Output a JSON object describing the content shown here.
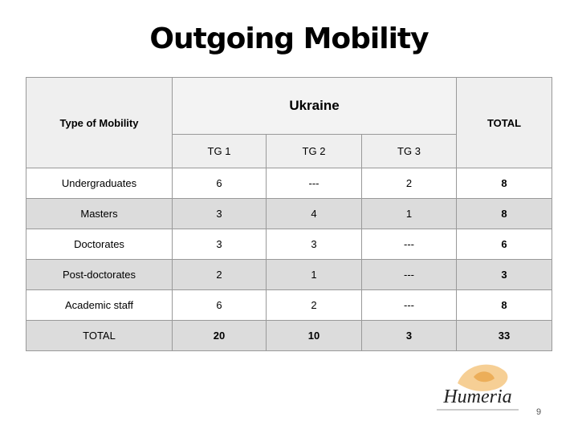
{
  "title": "Outgoing Mobility",
  "table": {
    "header": {
      "type": "Type of Mobility",
      "group": "Ukraine",
      "total": "TOTAL",
      "subgroups": [
        "TG 1",
        "TG 2",
        "TG 3"
      ]
    },
    "rows": [
      [
        "Undergraduates",
        "6",
        "---",
        "2",
        "8"
      ],
      [
        "Masters",
        "3",
        "4",
        "1",
        "8"
      ],
      [
        "Doctorates",
        "3",
        "3",
        "---",
        "6"
      ],
      [
        "Post-doctorates",
        "2",
        "1",
        "---",
        "3"
      ],
      [
        "Academic staff",
        "6",
        "2",
        "---",
        "8"
      ],
      [
        "TOTAL",
        "20",
        "10",
        "3",
        "33"
      ]
    ]
  },
  "logo": {
    "text": "Humeria"
  },
  "page_number": "9"
}
